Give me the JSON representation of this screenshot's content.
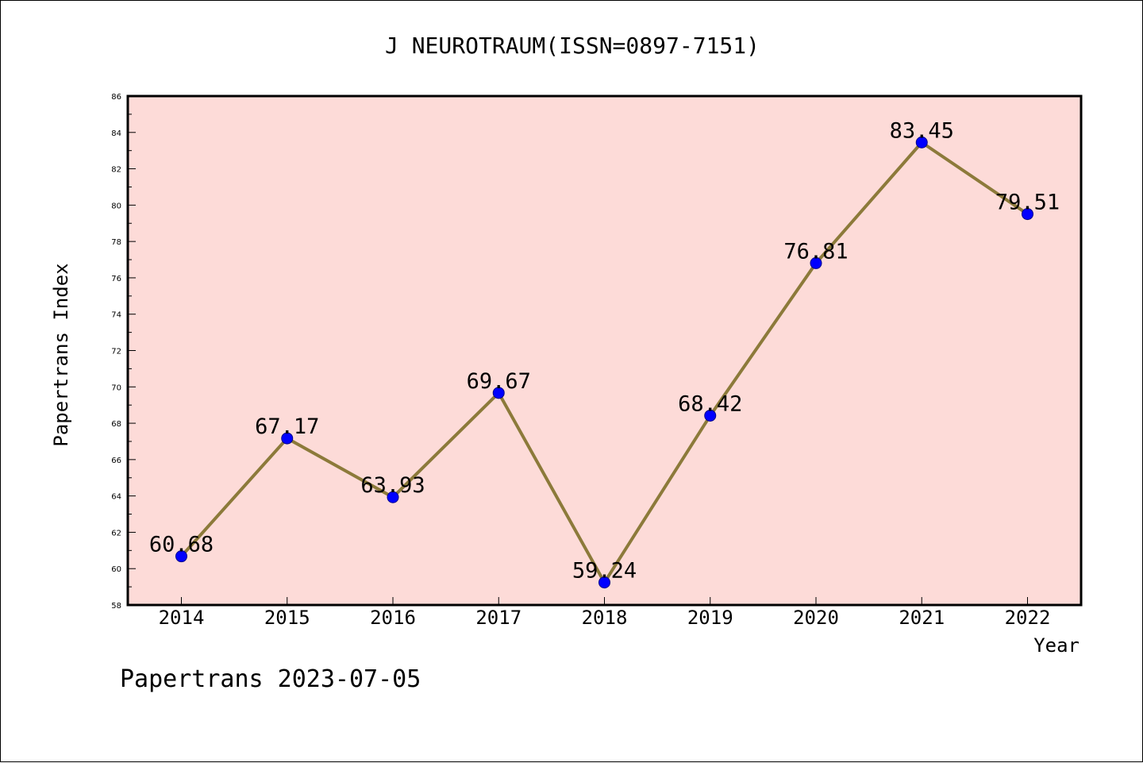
{
  "chart_data": {
    "type": "line",
    "title": "J NEUROTRAUM(ISSN=0897-7151)",
    "xlabel": "Year",
    "ylabel": "Papertrans Index",
    "footer": "Papertrans 2023-07-05",
    "categories": [
      "2014",
      "2015",
      "2016",
      "2017",
      "2018",
      "2019",
      "2020",
      "2021",
      "2022"
    ],
    "values": [
      60.68,
      67.17,
      63.93,
      69.67,
      59.24,
      68.42,
      76.81,
      83.45,
      79.51
    ],
    "data_labels": [
      "60.68",
      "67.17",
      "63.93",
      "69.67",
      "59.24",
      "68.42",
      "76.81",
      "83.45",
      "79.51"
    ],
    "ylim": [
      58,
      86
    ],
    "yticks": [
      "58",
      "60",
      "62",
      "64",
      "66",
      "68",
      "70",
      "72",
      "74",
      "76",
      "78",
      "80",
      "82",
      "84",
      "86"
    ],
    "grid": false,
    "legend": "none",
    "colors": {
      "plot_background": "#fddbd8",
      "line": "#8c7a3a",
      "marker": "#0000ff",
      "marker_edge": "#00008b",
      "axis": "#000000"
    }
  }
}
